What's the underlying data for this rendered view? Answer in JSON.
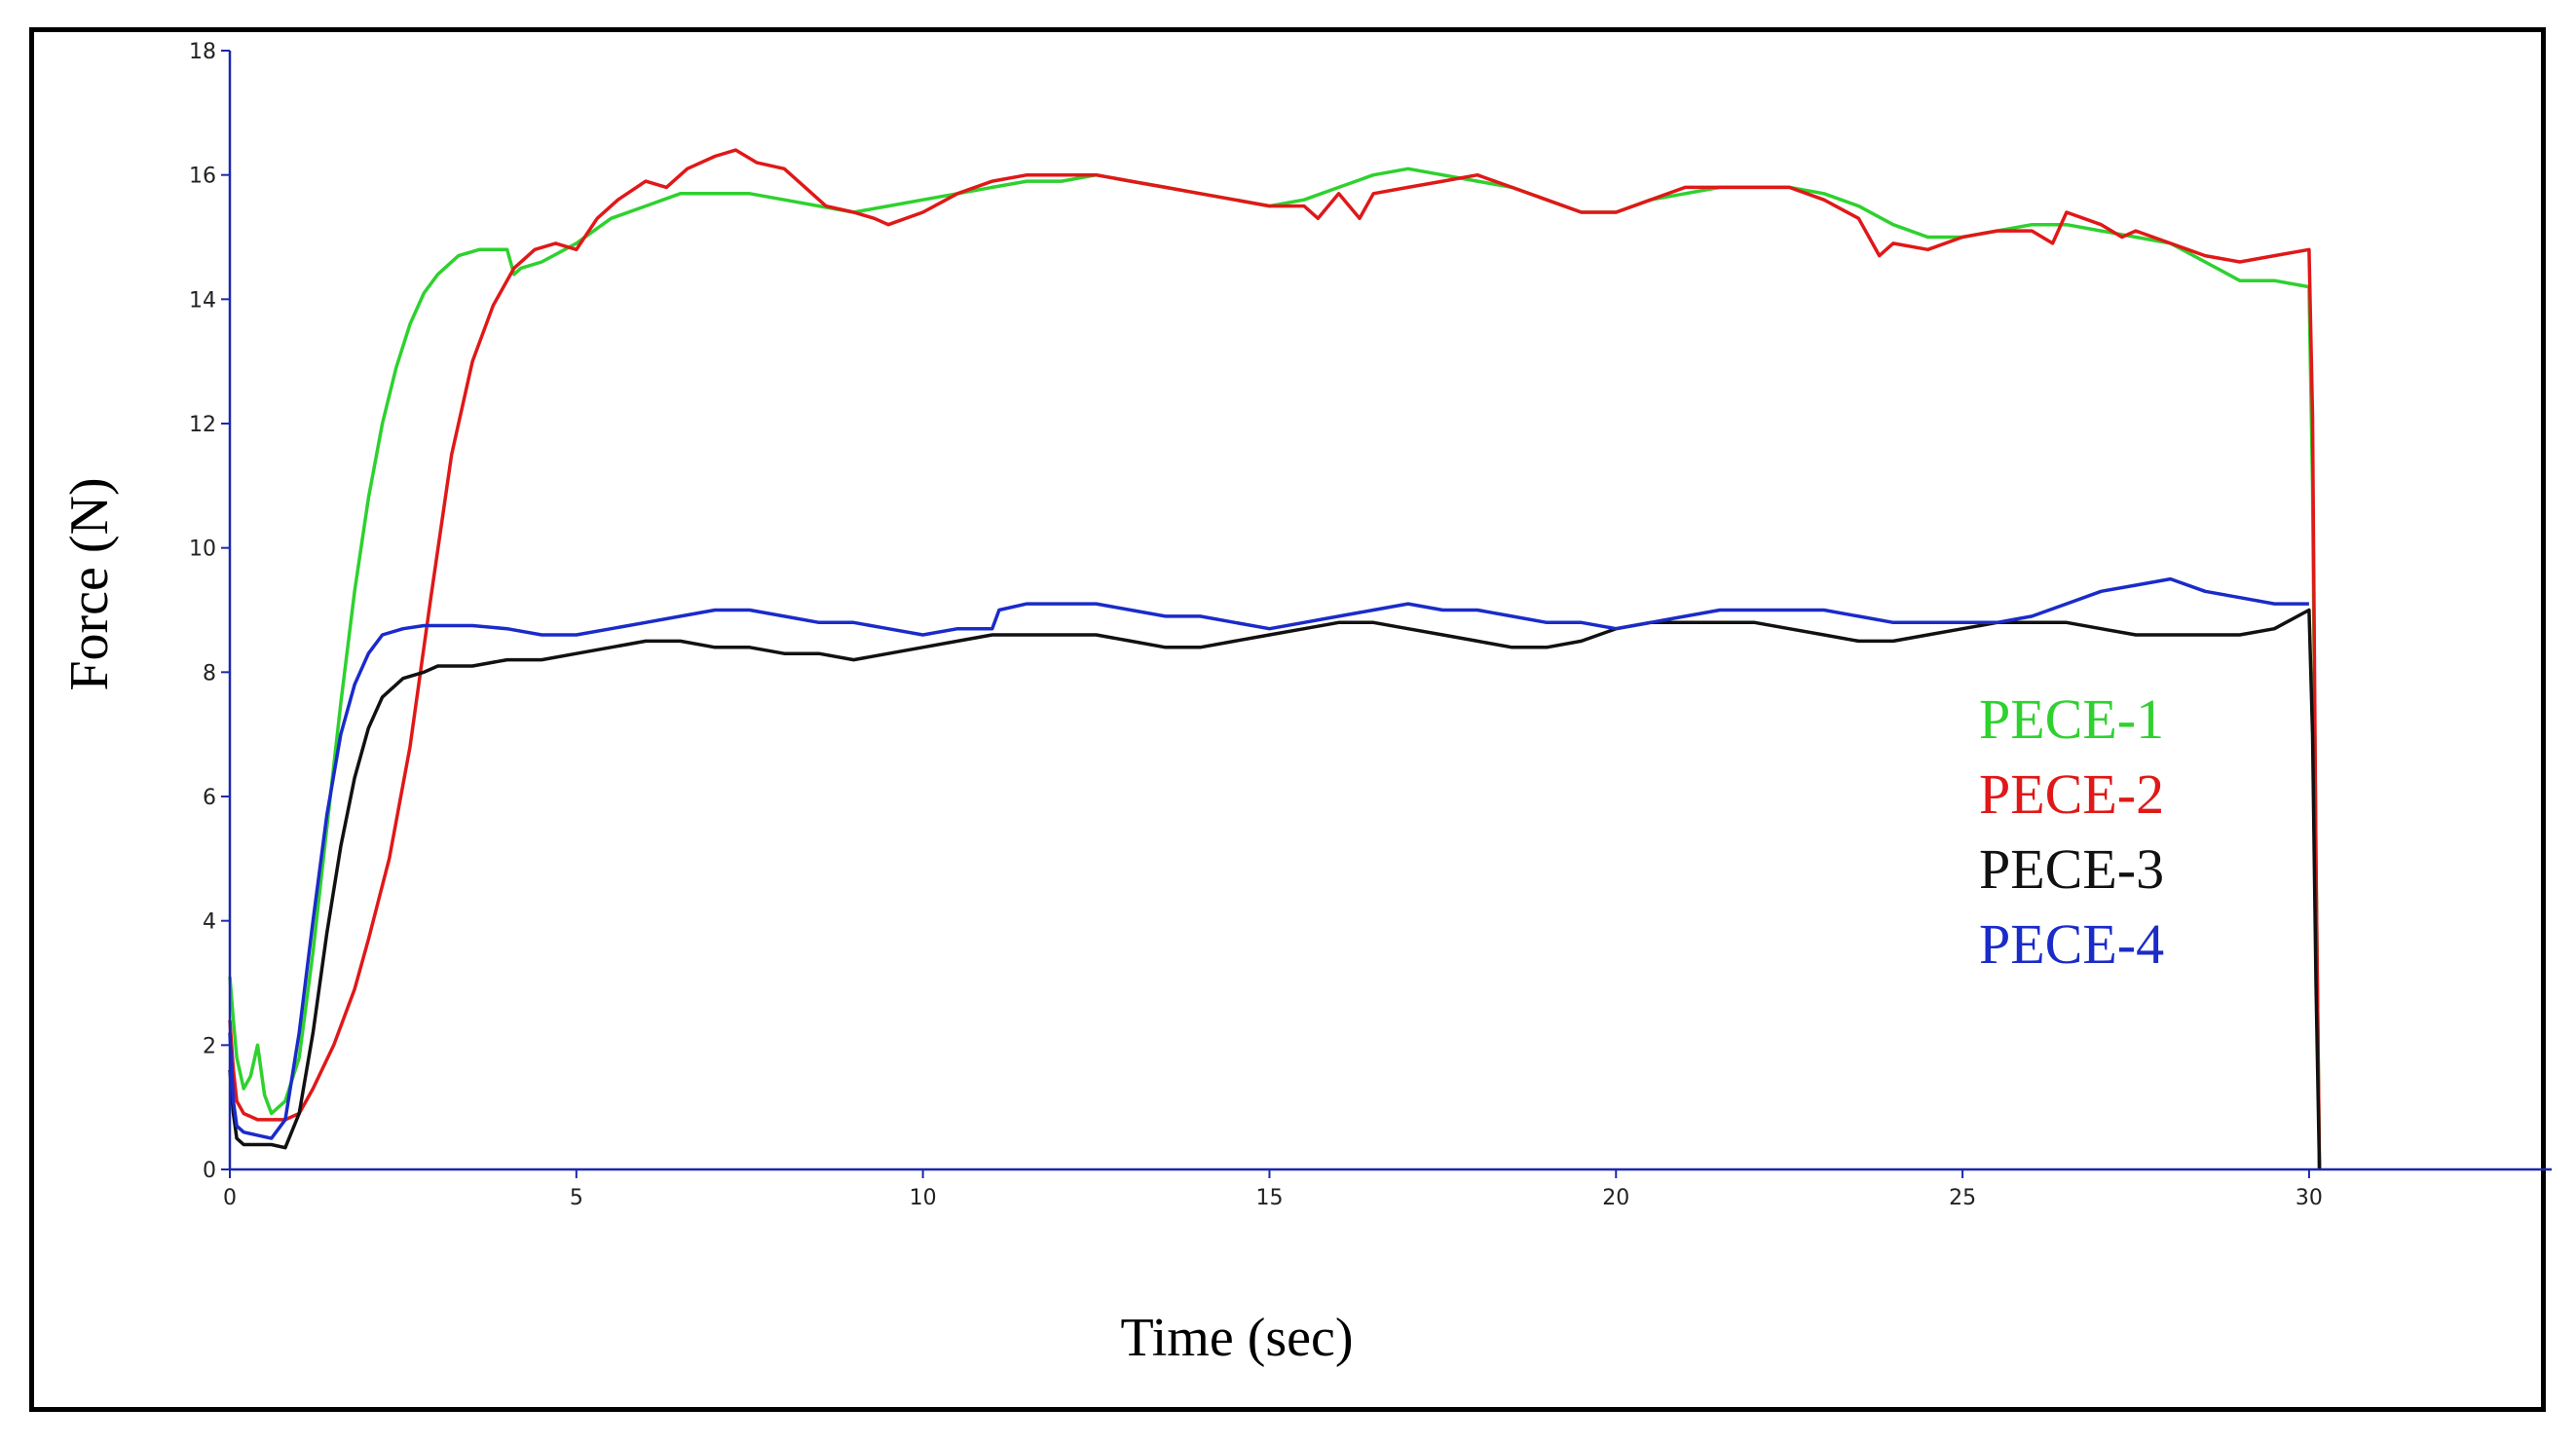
{
  "chart_data": {
    "type": "line",
    "title": "",
    "xlabel": "Time (sec)",
    "ylabel": "Force (N)",
    "xlim": [
      0,
      33.5
    ],
    "ylim": [
      0,
      18
    ],
    "xticks": [
      0,
      5,
      10,
      15,
      20,
      25,
      30
    ],
    "yticks": [
      0,
      2,
      4,
      6,
      8,
      10,
      12,
      14,
      16,
      18
    ],
    "grid": false,
    "legend_position": "right",
    "axis_color": "#1c28b0",
    "series": [
      {
        "name": "PECE-1",
        "color": "#2ed12e",
        "x": [
          0,
          0.05,
          0.1,
          0.2,
          0.3,
          0.4,
          0.5,
          0.6,
          0.8,
          1.0,
          1.2,
          1.4,
          1.6,
          1.8,
          2.0,
          2.2,
          2.4,
          2.6,
          2.8,
          3.0,
          3.3,
          3.6,
          4.0,
          4.1,
          4.2,
          4.5,
          5.0,
          5.5,
          6.0,
          6.5,
          7.0,
          7.5,
          8.0,
          8.5,
          9.0,
          9.5,
          10.0,
          10.5,
          11.0,
          11.5,
          12.0,
          12.5,
          13.0,
          13.5,
          14.0,
          14.5,
          15.0,
          15.5,
          16.0,
          16.5,
          17.0,
          17.5,
          18.0,
          18.5,
          19.0,
          19.5,
          20.0,
          20.5,
          21.0,
          21.5,
          22.0,
          22.5,
          23.0,
          23.5,
          24.0,
          24.5,
          25.0,
          25.5,
          26.0,
          26.5,
          27.0,
          27.5,
          28.0,
          28.5,
          29.0,
          29.5,
          30.0,
          30.05,
          30.1,
          30.15
        ],
        "y": [
          3.1,
          2.4,
          1.8,
          1.3,
          1.5,
          2.0,
          1.2,
          0.9,
          1.1,
          1.8,
          3.5,
          5.5,
          7.5,
          9.3,
          10.8,
          12.0,
          12.9,
          13.6,
          14.1,
          14.4,
          14.7,
          14.8,
          14.8,
          14.4,
          14.5,
          14.6,
          14.9,
          15.3,
          15.5,
          15.7,
          15.7,
          15.7,
          15.6,
          15.5,
          15.4,
          15.5,
          15.6,
          15.7,
          15.8,
          15.9,
          15.9,
          16.0,
          15.9,
          15.8,
          15.7,
          15.6,
          15.5,
          15.6,
          15.8,
          16.0,
          16.1,
          16.0,
          15.9,
          15.8,
          15.6,
          15.4,
          15.4,
          15.6,
          15.7,
          15.8,
          15.8,
          15.8,
          15.7,
          15.5,
          15.2,
          15.0,
          15.0,
          15.1,
          15.2,
          15.2,
          15.1,
          15.0,
          14.9,
          14.6,
          14.3,
          14.3,
          14.2,
          11.0,
          5.0,
          0.0
        ]
      },
      {
        "name": "PECE-2",
        "color": "#e01818",
        "x": [
          0,
          0.05,
          0.1,
          0.2,
          0.4,
          0.6,
          0.8,
          1.0,
          1.2,
          1.5,
          1.8,
          2.0,
          2.3,
          2.6,
          2.9,
          3.2,
          3.5,
          3.8,
          4.1,
          4.4,
          4.7,
          5.0,
          5.3,
          5.6,
          6.0,
          6.3,
          6.6,
          7.0,
          7.3,
          7.6,
          8.0,
          8.3,
          8.6,
          9.0,
          9.3,
          9.5,
          10.0,
          10.5,
          11.0,
          11.5,
          12.0,
          12.5,
          13.0,
          13.5,
          14.0,
          14.5,
          15.0,
          15.5,
          15.7,
          16.0,
          16.3,
          16.5,
          17.0,
          17.5,
          18.0,
          18.5,
          19.0,
          19.5,
          20.0,
          20.5,
          21.0,
          21.5,
          22.0,
          22.5,
          23.0,
          23.5,
          23.8,
          24.0,
          24.5,
          25.0,
          25.5,
          26.0,
          26.3,
          26.5,
          27.0,
          27.3,
          27.5,
          28.0,
          28.5,
          29.0,
          29.5,
          30.0,
          30.05,
          30.1,
          30.15
        ],
        "y": [
          2.4,
          1.6,
          1.1,
          0.9,
          0.8,
          0.8,
          0.8,
          0.9,
          1.3,
          2.0,
          2.9,
          3.7,
          5.0,
          6.8,
          9.2,
          11.5,
          13.0,
          13.9,
          14.5,
          14.8,
          14.9,
          14.8,
          15.3,
          15.6,
          15.9,
          15.8,
          16.1,
          16.3,
          16.4,
          16.2,
          16.1,
          15.8,
          15.5,
          15.4,
          15.3,
          15.2,
          15.4,
          15.7,
          15.9,
          16.0,
          16.0,
          16.0,
          15.9,
          15.8,
          15.7,
          15.6,
          15.5,
          15.5,
          15.3,
          15.7,
          15.3,
          15.7,
          15.8,
          15.9,
          16.0,
          15.8,
          15.6,
          15.4,
          15.4,
          15.6,
          15.8,
          15.8,
          15.8,
          15.8,
          15.6,
          15.3,
          14.7,
          14.9,
          14.8,
          15.0,
          15.1,
          15.1,
          14.9,
          15.4,
          15.2,
          15.0,
          15.1,
          14.9,
          14.7,
          14.6,
          14.7,
          14.8,
          12.1,
          5.0,
          0.0
        ]
      },
      {
        "name": "PECE-3",
        "color": "#111111",
        "x": [
          0,
          0.05,
          0.1,
          0.2,
          0.4,
          0.6,
          0.8,
          1.0,
          1.2,
          1.4,
          1.6,
          1.8,
          2.0,
          2.2,
          2.5,
          2.8,
          3.0,
          3.5,
          4.0,
          4.5,
          5.0,
          5.5,
          6.0,
          6.5,
          7.0,
          7.5,
          8.0,
          8.5,
          9.0,
          9.5,
          10.0,
          10.5,
          11.0,
          11.5,
          12.0,
          12.5,
          13.0,
          13.5,
          14.0,
          14.5,
          15.0,
          15.5,
          16.0,
          16.5,
          17.0,
          17.5,
          18.0,
          18.5,
          19.0,
          19.5,
          20.0,
          20.5,
          21.0,
          21.5,
          22.0,
          22.5,
          23.0,
          23.5,
          24.0,
          24.5,
          25.0,
          25.5,
          26.0,
          26.5,
          27.0,
          27.5,
          28.0,
          28.5,
          29.0,
          29.5,
          30.0,
          30.05,
          30.1,
          30.15
        ],
        "y": [
          1.6,
          0.9,
          0.5,
          0.4,
          0.4,
          0.4,
          0.35,
          0.9,
          2.2,
          3.8,
          5.2,
          6.3,
          7.1,
          7.6,
          7.9,
          8.0,
          8.1,
          8.1,
          8.2,
          8.2,
          8.3,
          8.4,
          8.5,
          8.5,
          8.4,
          8.4,
          8.3,
          8.3,
          8.2,
          8.3,
          8.4,
          8.5,
          8.6,
          8.6,
          8.6,
          8.6,
          8.5,
          8.4,
          8.4,
          8.5,
          8.6,
          8.7,
          8.8,
          8.8,
          8.7,
          8.6,
          8.5,
          8.4,
          8.4,
          8.5,
          8.7,
          8.8,
          8.8,
          8.8,
          8.8,
          8.7,
          8.6,
          8.5,
          8.5,
          8.6,
          8.7,
          8.8,
          8.8,
          8.8,
          8.7,
          8.6,
          8.6,
          8.6,
          8.6,
          8.7,
          9.0,
          7.0,
          3.0,
          0.0
        ]
      },
      {
        "name": "PECE-4",
        "color": "#1a2bc9",
        "x": [
          0,
          0.05,
          0.1,
          0.2,
          0.4,
          0.6,
          0.8,
          1.0,
          1.2,
          1.4,
          1.6,
          1.8,
          2.0,
          2.2,
          2.5,
          2.8,
          3.0,
          3.5,
          4.0,
          4.5,
          5.0,
          5.5,
          6.0,
          6.5,
          7.0,
          7.5,
          8.0,
          8.5,
          9.0,
          9.5,
          10.0,
          10.5,
          11.0,
          11.1,
          11.5,
          12.0,
          12.5,
          13.0,
          13.5,
          14.0,
          14.5,
          15.0,
          15.5,
          16.0,
          16.5,
          17.0,
          17.5,
          18.0,
          18.5,
          19.0,
          19.5,
          20.0,
          20.5,
          21.0,
          21.5,
          22.0,
          22.5,
          23.0,
          23.5,
          24.0,
          24.5,
          25.0,
          25.5,
          26.0,
          26.5,
          27.0,
          27.5,
          28.0,
          28.5,
          29.0,
          29.5,
          30.0
        ],
        "y": [
          2.2,
          1.1,
          0.7,
          0.6,
          0.55,
          0.5,
          0.8,
          2.2,
          4.0,
          5.7,
          7.0,
          7.8,
          8.3,
          8.6,
          8.7,
          8.75,
          8.75,
          8.75,
          8.7,
          8.6,
          8.6,
          8.7,
          8.8,
          8.9,
          9.0,
          9.0,
          8.9,
          8.8,
          8.8,
          8.7,
          8.6,
          8.7,
          8.7,
          9.0,
          9.1,
          9.1,
          9.1,
          9.0,
          8.9,
          8.9,
          8.8,
          8.7,
          8.8,
          8.9,
          9.0,
          9.1,
          9.0,
          9.0,
          8.9,
          8.8,
          8.8,
          8.7,
          8.8,
          8.9,
          9.0,
          9.0,
          9.0,
          9.0,
          8.9,
          8.8,
          8.8,
          8.8,
          8.8,
          8.9,
          9.1,
          9.3,
          9.4,
          9.5,
          9.3,
          9.2,
          9.1,
          9.1
        ]
      }
    ]
  }
}
